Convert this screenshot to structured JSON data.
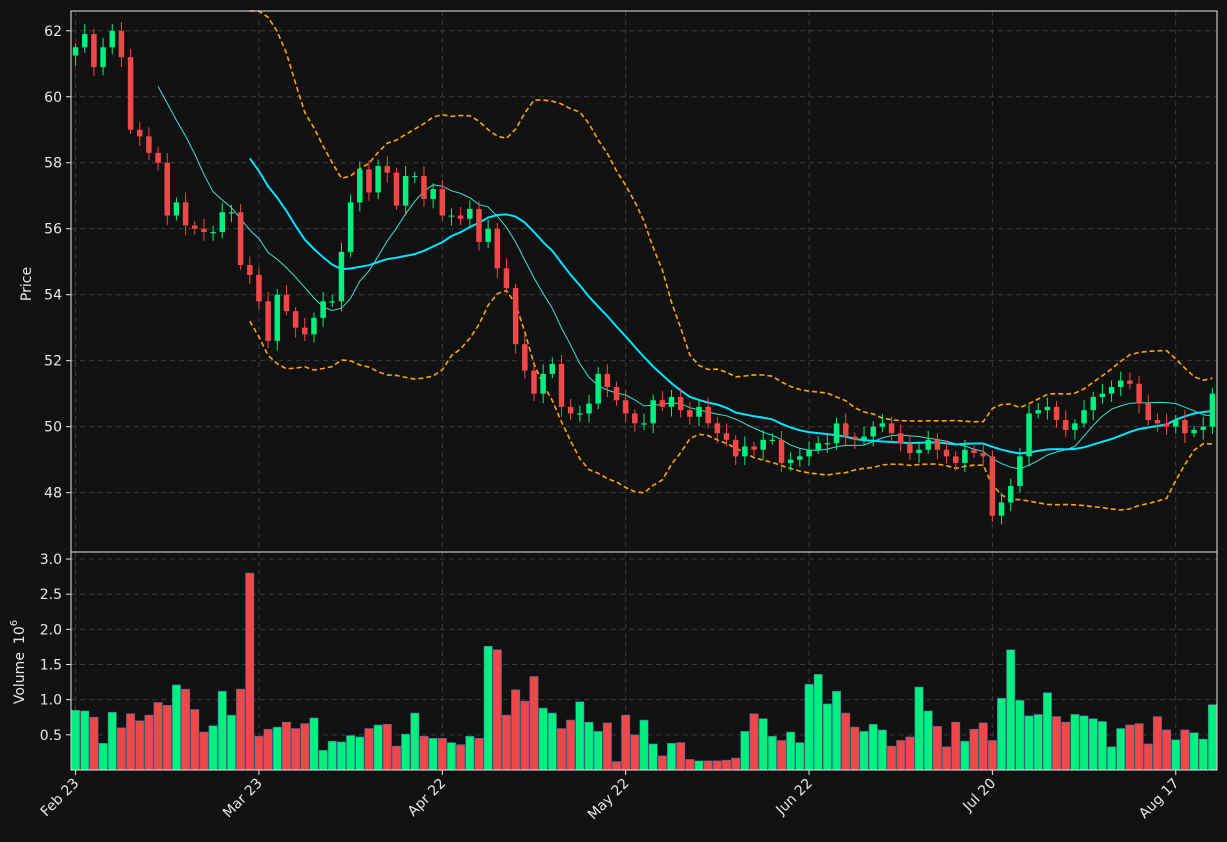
{
  "colors": {
    "background": "#111111",
    "up": "#00f080",
    "down": "#f04848",
    "ma_fast": "#40e0d0",
    "ma_slow": "#00e5ff",
    "band": "#ffa500",
    "grid": "#3a3a3a",
    "text": "#e8e8e8"
  },
  "chart_data": {
    "type": "candlestick",
    "ylabel_price": "Price",
    "ylabel_volume": "Volume",
    "volume_multiplier_label": "10",
    "volume_multiplier_exp": "6",
    "grid": true,
    "price_ylim": [
      46.2,
      62.6
    ],
    "volume_ylim": [
      0,
      3.1
    ],
    "price_ticks": [
      48,
      50,
      52,
      54,
      56,
      58,
      60,
      62
    ],
    "volume_ticks": [
      0.5,
      1.0,
      1.5,
      2.0,
      2.5,
      3.0
    ],
    "x_tick_labels": [
      {
        "index": 0,
        "label": "Feb 23"
      },
      {
        "index": 20,
        "label": "Mar 23"
      },
      {
        "index": 40,
        "label": "Apr 22"
      },
      {
        "index": 60,
        "label": "May 22"
      },
      {
        "index": 80,
        "label": "Jun 22"
      },
      {
        "index": 100,
        "label": "Jul 20"
      },
      {
        "index": 120,
        "label": "Aug 17"
      }
    ],
    "closes": [
      61.5,
      61.9,
      60.9,
      61.5,
      62.0,
      61.2,
      59.0,
      58.8,
      58.3,
      58.0,
      56.4,
      56.8,
      56.1,
      56.0,
      55.9,
      55.9,
      56.5,
      56.5,
      54.9,
      54.6,
      53.8,
      52.6,
      54.0,
      53.5,
      53.0,
      52.8,
      53.3,
      53.8,
      53.8,
      55.3,
      56.8,
      57.8,
      57.1,
      57.9,
      57.7,
      56.7,
      57.6,
      57.6,
      56.9,
      57.2,
      56.4,
      56.4,
      56.3,
      56.6,
      55.6,
      56.0,
      54.8,
      54.2,
      52.5,
      51.7,
      51.0,
      51.6,
      51.9,
      50.6,
      50.4,
      50.4,
      50.7,
      51.6,
      51.2,
      50.8,
      50.4,
      50.1,
      50.1,
      50.8,
      50.6,
      50.9,
      50.5,
      50.3,
      50.6,
      50.1,
      49.8,
      49.6,
      49.1,
      49.4,
      49.3,
      49.6,
      49.6,
      48.9,
      49.0,
      49.1,
      49.3,
      49.5,
      49.5,
      50.1,
      49.7,
      49.6,
      49.7,
      50.0,
      50.1,
      49.8,
      49.5,
      49.2,
      49.3,
      49.6,
      49.3,
      49.1,
      48.9,
      49.3,
      49.2,
      49.1,
      47.3,
      47.7,
      48.2,
      49.1,
      50.4,
      50.5,
      50.6,
      50.2,
      49.9,
      50.1,
      50.5,
      50.9,
      51.0,
      51.2,
      51.4,
      51.3,
      50.7,
      50.2,
      50.1,
      50.0,
      50.2,
      49.8,
      49.9,
      50.0,
      51.0
    ],
    "volumes": [
      0.85,
      0.84,
      0.75,
      0.38,
      0.82,
      0.6,
      0.8,
      0.7,
      0.78,
      0.96,
      0.92,
      1.21,
      1.15,
      0.86,
      0.54,
      0.63,
      1.12,
      0.78,
      1.15,
      2.8,
      0.48,
      0.58,
      0.61,
      0.68,
      0.59,
      0.66,
      0.74,
      0.28,
      0.41,
      0.4,
      0.49,
      0.47,
      0.59,
      0.64,
      0.65,
      0.34,
      0.51,
      0.81,
      0.48,
      0.45,
      0.45,
      0.39,
      0.36,
      0.48,
      0.45,
      1.76,
      1.71,
      0.78,
      1.14,
      0.98,
      1.33,
      0.88,
      0.81,
      0.59,
      0.71,
      0.97,
      0.68,
      0.55,
      0.67,
      0.12,
      0.78,
      0.5,
      0.71,
      0.37,
      0.2,
      0.38,
      0.39,
      0.15,
      0.13,
      0.13,
      0.13,
      0.14,
      0.17,
      0.55,
      0.8,
      0.73,
      0.48,
      0.42,
      0.54,
      0.39,
      1.22,
      1.36,
      0.94,
      1.12,
      0.81,
      0.61,
      0.55,
      0.65,
      0.57,
      0.34,
      0.42,
      0.47,
      1.18,
      0.84,
      0.62,
      0.33,
      0.68,
      0.41,
      0.58,
      0.67,
      0.42,
      1.02,
      1.71,
      0.99,
      0.77,
      0.79,
      1.1,
      0.76,
      0.68,
      0.79,
      0.77,
      0.73,
      0.69,
      0.33,
      0.59,
      0.64,
      0.66,
      0.37,
      0.76,
      0.57,
      0.43,
      0.57,
      0.53,
      0.44,
      0.93
    ]
  }
}
